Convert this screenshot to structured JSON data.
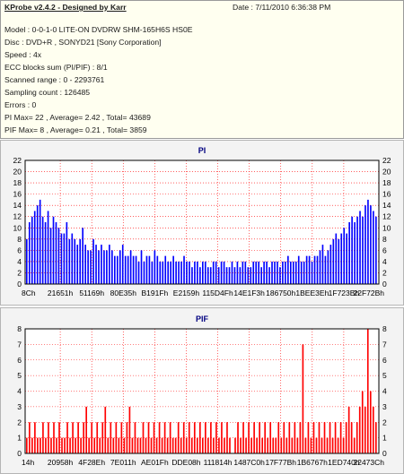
{
  "info": {
    "title": "KProbe v2.4.2 - Designed by Karr",
    "date": "Date : 7/11/2010 6:36:38 PM",
    "lines": [
      "Model : 0-0-1-0 LITE-ON DVDRW SHM-165H6S HS0E",
      "Disc : DVD+R , SONYD21 [Sony Corporation]",
      "Speed : 4x",
      "ECC blocks sum (PI/PIF) : 8/1",
      "Scanned range : 0 - 2293761",
      "Sampling count : 126485",
      "Errors : 0",
      "PI Max= 22 , Average= 2.42 , Total= 43689",
      "PIF Max= 8 , Average= 0.21 , Total= 3859"
    ]
  },
  "colors": {
    "pi_bars": "#0000ff",
    "pif_bars": "#ff0000",
    "grid": "#ff0000",
    "plot_bg": "#ffffff",
    "panel_bg": "#f3f3f3",
    "title": "#000080"
  },
  "chart_data": [
    {
      "type": "bar",
      "title": "PI",
      "xlabel": "",
      "ylabel": "",
      "ylim": [
        0,
        22
      ],
      "yticks": [
        0,
        2,
        4,
        6,
        8,
        10,
        12,
        14,
        16,
        18,
        20,
        22
      ],
      "x_tick_labels": [
        "8Ch",
        "21651h",
        "51169h",
        "80E35h",
        "B191Fh",
        "E2159h",
        "115D4Fh",
        "14E1F3h",
        "186750h",
        "1BEE3Eh",
        "1F723Bh",
        "22F72Bh"
      ],
      "grid": true,
      "max_marker": {
        "position": "near right end",
        "value": 22
      },
      "series": [
        {
          "values_note": "sampled envelope of dense bar series, evenly spaced from first to last tick",
          "values": [
            8,
            11,
            12,
            13,
            14,
            15,
            12,
            11,
            13,
            10,
            12,
            11,
            10,
            9,
            9,
            11,
            8,
            9,
            8,
            7,
            8,
            10,
            7,
            6,
            6,
            8,
            7,
            6,
            7,
            6,
            6,
            7,
            6,
            5,
            5,
            6,
            7,
            5,
            5,
            6,
            5,
            5,
            4,
            6,
            4,
            5,
            5,
            4,
            6,
            5,
            4,
            4,
            5,
            4,
            4,
            5,
            4,
            4,
            4,
            5,
            4,
            4,
            3,
            4,
            4,
            3,
            4,
            4,
            3,
            3,
            4,
            4,
            3,
            4,
            4,
            3,
            3,
            4,
            3,
            4,
            3,
            4,
            4,
            3,
            3,
            4,
            4,
            4,
            3,
            4,
            4,
            3,
            4,
            4,
            4,
            3,
            4,
            4,
            5,
            4,
            4,
            4,
            5,
            4,
            4,
            5,
            5,
            4,
            5,
            5,
            6,
            7,
            5,
            6,
            7,
            8,
            9,
            8,
            9,
            10,
            9,
            11,
            12,
            11,
            12,
            13,
            12,
            14,
            15,
            14,
            13,
            12
          ]
        }
      ]
    },
    {
      "type": "bar",
      "title": "PIF",
      "xlabel": "",
      "ylabel": "",
      "ylim": [
        0,
        8
      ],
      "yticks": [
        0,
        1,
        2,
        3,
        4,
        5,
        6,
        7,
        8
      ],
      "x_tick_labels": [
        "14h",
        "20958h",
        "4F28Eh",
        "7E011h",
        "AE01Fh",
        "DDE08h",
        "111814h",
        "1487C0h",
        "17F77Bh",
        "1B6767h",
        "1ED740h",
        "22473Ch"
      ],
      "grid": true,
      "max_marker": {
        "position": "near right end",
        "value": 8
      },
      "series": [
        {
          "values_note": "sampled bar heights, evenly spaced from first to last tick",
          "values": [
            1,
            2,
            1,
            2,
            1,
            1,
            2,
            1,
            2,
            1,
            2,
            1,
            2,
            1,
            1,
            2,
            1,
            2,
            1,
            2,
            1,
            2,
            3,
            1,
            2,
            1,
            2,
            1,
            2,
            3,
            1,
            2,
            1,
            2,
            1,
            2,
            1,
            2,
            3,
            1,
            2,
            1,
            1,
            2,
            1,
            2,
            1,
            2,
            1,
            2,
            1,
            2,
            1,
            2,
            1,
            1,
            2,
            1,
            2,
            1,
            2,
            1,
            2,
            1,
            2,
            1,
            2,
            1,
            2,
            1,
            2,
            1,
            2,
            1,
            2,
            1,
            0,
            1,
            2,
            1,
            2,
            1,
            2,
            1,
            2,
            1,
            2,
            1,
            2,
            1,
            2,
            1,
            1,
            2,
            1,
            2,
            1,
            2,
            1,
            2,
            1,
            2,
            7,
            1,
            2,
            1,
            2,
            1,
            2,
            1,
            2,
            1,
            2,
            1,
            2,
            1,
            2,
            1,
            2,
            3,
            2,
            1,
            2,
            3,
            4,
            3,
            8,
            4,
            3,
            2
          ]
        }
      ]
    }
  ]
}
